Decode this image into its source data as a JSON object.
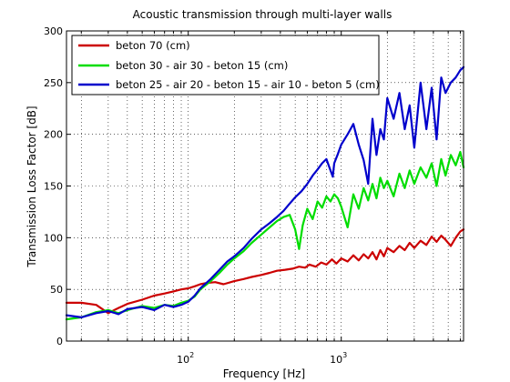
{
  "chart_data": {
    "type": "line",
    "title": "Acoustic transmission through multi-layer walls",
    "xlabel": "Frequency [Hz]",
    "ylabel": "Transmission Loss Factor [dB]",
    "xscale": "log",
    "xlim": [
      16,
      6300
    ],
    "ylim": [
      0,
      300
    ],
    "yticks": [
      0,
      50,
      100,
      150,
      200,
      250,
      300
    ],
    "xticks": [
      {
        "value": 100,
        "base": "10",
        "exp": "2"
      },
      {
        "value": 1000,
        "base": "10",
        "exp": "3"
      }
    ],
    "grid": true,
    "legend_position": "top-left",
    "series": [
      {
        "name": "beton 70 (cm)",
        "color": "#cc0000",
        "x": [
          16,
          20,
          25,
          30,
          35,
          40,
          50,
          60,
          70,
          80,
          90,
          100,
          110,
          120,
          130,
          150,
          170,
          200,
          230,
          260,
          300,
          340,
          380,
          430,
          480,
          530,
          580,
          620,
          680,
          740,
          800,
          870,
          930,
          1000,
          1100,
          1200,
          1300,
          1400,
          1500,
          1600,
          1700,
          1800,
          1900,
          2000,
          2200,
          2400,
          2600,
          2800,
          3000,
          3300,
          3600,
          3900,
          4200,
          4500,
          4800,
          5200,
          5600,
          6000,
          6300
        ],
        "y": [
          37,
          37,
          35,
          27,
          32,
          36,
          40,
          44,
          46,
          48,
          50,
          51,
          53,
          55,
          56,
          57,
          55,
          58,
          60,
          62,
          64,
          66,
          68,
          69,
          70,
          72,
          71,
          74,
          72,
          76,
          74,
          79,
          75,
          80,
          77,
          83,
          78,
          84,
          80,
          86,
          79,
          88,
          82,
          90,
          86,
          92,
          88,
          95,
          90,
          97,
          93,
          101,
          96,
          102,
          98,
          92,
          100,
          106,
          108
        ]
      },
      {
        "name": "beton 30 - air 30 - beton 15 (cm)",
        "color": "#00dd00",
        "x": [
          16,
          20,
          25,
          30,
          35,
          40,
          50,
          60,
          70,
          80,
          90,
          100,
          110,
          120,
          140,
          160,
          180,
          200,
          230,
          260,
          300,
          340,
          380,
          420,
          460,
          500,
          530,
          560,
          600,
          650,
          700,
          750,
          800,
          850,
          900,
          950,
          1000,
          1100,
          1200,
          1300,
          1400,
          1500,
          1600,
          1700,
          1800,
          1900,
          2000,
          2200,
          2400,
          2600,
          2800,
          3000,
          3300,
          3600,
          3900,
          4200,
          4500,
          4800,
          5200,
          5600,
          6000,
          6300
        ],
        "y": [
          21,
          23,
          28,
          30,
          27,
          30,
          34,
          32,
          35,
          34,
          37,
          39,
          43,
          50,
          58,
          66,
          74,
          80,
          87,
          95,
          103,
          110,
          116,
          120,
          122,
          108,
          89,
          112,
          128,
          118,
          135,
          129,
          140,
          135,
          142,
          138,
          130,
          110,
          142,
          128,
          148,
          136,
          152,
          138,
          158,
          148,
          155,
          140,
          162,
          148,
          165,
          152,
          168,
          158,
          172,
          150,
          176,
          160,
          180,
          170,
          183,
          168
        ]
      },
      {
        "name": "beton 25 - air 20 - beton 15 - air 10 - beton 5 (cm)",
        "color": "#0000cc",
        "x": [
          16,
          20,
          25,
          30,
          35,
          40,
          50,
          60,
          70,
          80,
          90,
          100,
          110,
          120,
          140,
          160,
          180,
          200,
          230,
          260,
          300,
          340,
          380,
          420,
          460,
          500,
          550,
          600,
          650,
          700,
          750,
          800,
          850,
          880,
          900,
          950,
          1000,
          1100,
          1200,
          1300,
          1400,
          1500,
          1600,
          1700,
          1800,
          1900,
          2000,
          2200,
          2400,
          2600,
          2800,
          3000,
          3300,
          3600,
          3900,
          4200,
          4500,
          4800,
          5200,
          5600,
          6000,
          6300
        ],
        "y": [
          25,
          23,
          27,
          29,
          26,
          31,
          33,
          30,
          35,
          33,
          35,
          38,
          44,
          51,
          60,
          69,
          77,
          82,
          90,
          99,
          108,
          114,
          120,
          126,
          133,
          139,
          145,
          152,
          160,
          166,
          172,
          176,
          165,
          159,
          172,
          181,
          190,
          200,
          210,
          190,
          175,
          152,
          215,
          180,
          205,
          195,
          235,
          215,
          240,
          205,
          228,
          187,
          250,
          205,
          245,
          195,
          255,
          240,
          250,
          255,
          262,
          265
        ]
      }
    ]
  }
}
